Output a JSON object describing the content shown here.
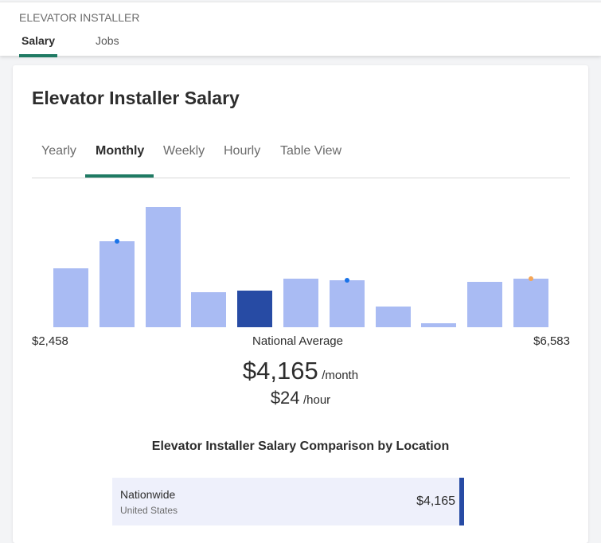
{
  "header": {
    "breadcrumb": "ELEVATOR INSTALLER",
    "tabs": [
      {
        "label": "Salary",
        "active": true
      },
      {
        "label": "Jobs",
        "active": false
      }
    ]
  },
  "card": {
    "title": "Elevator Installer Salary",
    "tabs": [
      {
        "label": "Yearly"
      },
      {
        "label": "Monthly",
        "active": true
      },
      {
        "label": "Weekly"
      },
      {
        "label": "Hourly"
      },
      {
        "label": "Table View"
      }
    ],
    "min_label": "$2,458",
    "max_label": "$6,583",
    "avg_label": "National Average",
    "monthly_value": "$4,165",
    "monthly_unit": "/month",
    "hourly_value": "$24",
    "hourly_unit": "/hour",
    "comparison_title": "Elevator Installer Salary Comparison by Location",
    "comparison_rows": [
      {
        "name": "Nationwide",
        "sub": "United States",
        "value": "$4,165"
      }
    ]
  },
  "chart_data": {
    "type": "bar",
    "values": [
      74,
      108,
      151,
      44,
      46,
      61,
      59,
      26,
      5,
      57,
      61
    ],
    "selected_index": 4,
    "markers": [
      {
        "index": 1,
        "color": "#1a73e8"
      },
      {
        "index": 6,
        "color": "#1a73e8"
      },
      {
        "index": 10,
        "color": "#f5a656"
      }
    ],
    "bar_color": "#a9bbf3",
    "selected_color": "#274ba4",
    "xmin_label": "$2,458",
    "xmax_label": "$6,583"
  }
}
